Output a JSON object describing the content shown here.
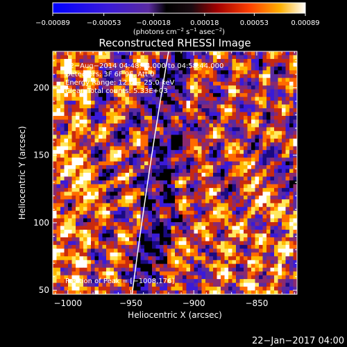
{
  "chart_data": {
    "type": "heatmap",
    "title": "Reconstructed RHESSI Image",
    "xlabel": "Heliocentric X (arcsec)",
    "ylabel": "Heliocentric Y (arcsec)",
    "xlim": [
      -1012,
      -818
    ],
    "ylim": [
      47,
      227
    ],
    "x_ticks": [
      -1000,
      -950,
      -900,
      -850
    ],
    "x_tick_labels": [
      "−1000",
      "−950",
      "−900",
      "−850"
    ],
    "y_ticks": [
      50,
      100,
      150,
      200
    ],
    "y_tick_labels": [
      "50",
      "100",
      "150",
      "200"
    ],
    "colorbar": {
      "range": [
        -0.00089,
        0.00089
      ],
      "ticks": [
        -0.00089,
        -0.00053,
        -0.00018,
        0.00018,
        0.00053,
        0.00089
      ],
      "tick_labels": [
        "−0.00089",
        "−0.00053",
        "−0.00018",
        "0.00018",
        "0.00053",
        "0.00089"
      ],
      "unit_label": "(photons cm",
      "unit_exp1": "−2",
      "unit_mid": " s",
      "unit_exp2": "−1",
      "unit_mid2": " asec",
      "unit_exp3": "−2",
      "unit_end": ")"
    },
    "annotations": [
      "22−Aug−2014 04:48:44.000 to 04:58:44.000",
      "Detectors: 3F 6F 9F, Att 0",
      "Energy Range: 12.0 − 25.0 keV",
      "Clean    Total counts: 5.33E+03"
    ],
    "peak_label": "Position of Peak = [−1008,176]",
    "peak_position": [
      -1008,
      176
    ],
    "limb_curve": [
      [
        -949,
        47
      ],
      [
        -936,
        140
      ],
      [
        -920,
        227
      ]
    ],
    "grid": false,
    "colormap": [
      "#000000",
      "#1a0a80",
      "#3a1ad8",
      "#5a2aa0",
      "#8a2a70",
      "#c82a10",
      "#ff6a00",
      "#ffb800",
      "#ffe860",
      "#ffffff"
    ]
  },
  "footer_timestamp": "22−Jan−2017 04:00"
}
